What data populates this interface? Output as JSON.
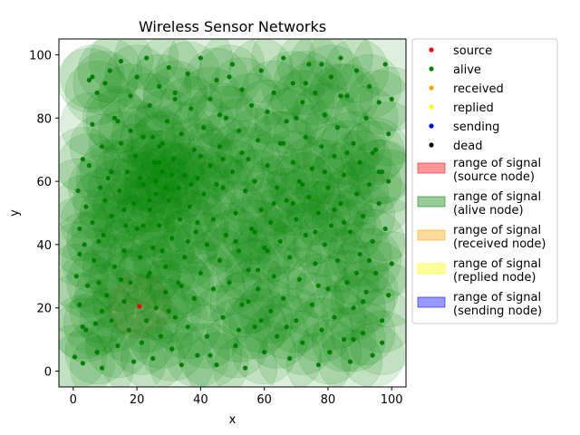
{
  "chart_data": {
    "type": "scatter",
    "title": "Wireless Sensor Networks",
    "xlabel": "x",
    "ylabel": "y",
    "xlim": [
      -4.5,
      104.5
    ],
    "ylim": [
      -5,
      105
    ],
    "xticks": [
      0,
      20,
      40,
      60,
      80,
      100
    ],
    "yticks": [
      0,
      20,
      40,
      60,
      80,
      100
    ],
    "grid": false,
    "legend_placement": "outside-right",
    "signal_radius": 10,
    "legend": [
      {
        "label": "source",
        "kind": "point",
        "color": "#ff0000"
      },
      {
        "label": "alive",
        "kind": "point",
        "color": "#008000"
      },
      {
        "label": "received",
        "kind": "point",
        "color": "#ffa500"
      },
      {
        "label": "replied",
        "kind": "point",
        "color": "#ffff00"
      },
      {
        "label": "sending",
        "kind": "point",
        "color": "#0000ff"
      },
      {
        "label": "dead",
        "kind": "point",
        "color": "#000000"
      },
      {
        "label": "range of signal\n(source node)",
        "kind": "patch",
        "color": "#ff0000"
      },
      {
        "label": "range of signal\n(alive node)",
        "kind": "patch",
        "color": "#008000"
      },
      {
        "label": "range of signal\n(received node)",
        "kind": "patch",
        "color": "#ffa500"
      },
      {
        "label": "range of signal\n(replied node)",
        "kind": "patch",
        "color": "#ffff00"
      },
      {
        "label": "range of signal\n(sending node)",
        "kind": "patch",
        "color": "#0000ff"
      }
    ],
    "series": [
      {
        "name": "source",
        "color": "#ff0000",
        "points": [
          [
            20.8,
            20.5
          ]
        ]
      },
      {
        "name": "alive",
        "color": "#008000",
        "points": [
          [
            0.5,
            4.5
          ],
          [
            1,
            30
          ],
          [
            1.5,
            57
          ],
          [
            2,
            21
          ],
          [
            2,
            37
          ],
          [
            3,
            2.5
          ],
          [
            3,
            67
          ],
          [
            3.5,
            40
          ],
          [
            4,
            13
          ],
          [
            4,
            52
          ],
          [
            4.5,
            27
          ],
          [
            5,
            65
          ],
          [
            5,
            92
          ],
          [
            6,
            47
          ],
          [
            6,
            78
          ],
          [
            6.5,
            35
          ],
          [
            7,
            15
          ],
          [
            7.5,
            6
          ],
          [
            7.5,
            88
          ],
          [
            8,
            28
          ],
          [
            8.5,
            58
          ],
          [
            9,
            1
          ],
          [
            9,
            71
          ],
          [
            9.5,
            43
          ],
          [
            10,
            91
          ],
          [
            10.5,
            24
          ],
          [
            11,
            61
          ],
          [
            11.5,
            95
          ],
          [
            12,
            16
          ],
          [
            12,
            49
          ],
          [
            13,
            33
          ],
          [
            13,
            80
          ],
          [
            14,
            8
          ],
          [
            14.5,
            57
          ],
          [
            15,
            72
          ],
          [
            15,
            98
          ],
          [
            16,
            22
          ],
          [
            16,
            38
          ],
          [
            16.5,
            46
          ],
          [
            17,
            63
          ],
          [
            17.5,
            13
          ],
          [
            18,
            28
          ],
          [
            18,
            87
          ],
          [
            19,
            3
          ],
          [
            19,
            53
          ],
          [
            19.5,
            68
          ],
          [
            20,
            45
          ],
          [
            20,
            93
          ],
          [
            21,
            36
          ],
          [
            21.5,
            9
          ],
          [
            22,
            74
          ],
          [
            22,
            59
          ],
          [
            23,
            16
          ],
          [
            23,
            99
          ],
          [
            23.5,
            30
          ],
          [
            24,
            51
          ],
          [
            24,
            84
          ],
          [
            25,
            4
          ],
          [
            25,
            39
          ],
          [
            25.5,
            66
          ],
          [
            26,
            20
          ],
          [
            26,
            56
          ],
          [
            27,
            90
          ],
          [
            27,
            46
          ],
          [
            27.5,
            11
          ],
          [
            28,
            72
          ],
          [
            28,
            63
          ],
          [
            29,
            33
          ],
          [
            29,
            25
          ],
          [
            29.5,
            79
          ],
          [
            30,
            54
          ],
          [
            30,
            96
          ],
          [
            31,
            42
          ],
          [
            31,
            7
          ],
          [
            31.5,
            67
          ],
          [
            32,
            17
          ],
          [
            32,
            88
          ],
          [
            33,
            58
          ],
          [
            33,
            28
          ],
          [
            33.5,
            48
          ],
          [
            34,
            75
          ],
          [
            34,
            2
          ],
          [
            35,
            36
          ],
          [
            35,
            62
          ],
          [
            36,
            94
          ],
          [
            36,
            14
          ],
          [
            36.5,
            52
          ],
          [
            37,
            83
          ],
          [
            38,
            23
          ],
          [
            38,
            70
          ],
          [
            38.5,
            44
          ],
          [
            39,
            5
          ],
          [
            39,
            61
          ],
          [
            40,
            31
          ],
          [
            40,
            99
          ],
          [
            41,
            56
          ],
          [
            41,
            77
          ],
          [
            42,
            11
          ],
          [
            42,
            40
          ],
          [
            43,
            86
          ],
          [
            43,
            65
          ],
          [
            44,
            26
          ],
          [
            44,
            48
          ],
          [
            45,
            2
          ],
          [
            45,
            92
          ],
          [
            46,
            71
          ],
          [
            46,
            35
          ],
          [
            47,
            58
          ],
          [
            47,
            17
          ],
          [
            48,
            80
          ],
          [
            48,
            43
          ],
          [
            49,
            28
          ],
          [
            50,
            63
          ],
          [
            50,
            97
          ],
          [
            51,
            8
          ],
          [
            51,
            50
          ],
          [
            52,
            76
          ],
          [
            52,
            38
          ],
          [
            53,
            21
          ],
          [
            53,
            89
          ],
          [
            54,
            57
          ],
          [
            54,
            1
          ],
          [
            55,
            67
          ],
          [
            55,
            32
          ],
          [
            56,
            45
          ],
          [
            56,
            84
          ],
          [
            57,
            14
          ],
          [
            57,
            60
          ],
          [
            58,
            73
          ],
          [
            58,
            26
          ],
          [
            59,
            51
          ],
          [
            59,
            95
          ],
          [
            60,
            6
          ],
          [
            60,
            39
          ],
          [
            61,
            82
          ],
          [
            61,
            65
          ],
          [
            62,
            19
          ],
          [
            62,
            47
          ],
          [
            63,
            88
          ],
          [
            63,
            30
          ],
          [
            64,
            58
          ],
          [
            64,
            11
          ],
          [
            65,
            72
          ],
          [
            65,
            41
          ],
          [
            66,
            99
          ],
          [
            66,
            23
          ],
          [
            67,
            54
          ],
          [
            67,
            79
          ],
          [
            68,
            4
          ],
          [
            68,
            36
          ],
          [
            69,
            66
          ],
          [
            69,
            91
          ],
          [
            70,
            16
          ],
          [
            70,
            48
          ],
          [
            71,
            60
          ],
          [
            71,
            29
          ],
          [
            72,
            85
          ],
          [
            72,
            9
          ],
          [
            73,
            43
          ],
          [
            73,
            74
          ],
          [
            74,
            55
          ],
          [
            74,
            97
          ],
          [
            75,
            21
          ],
          [
            75,
            64
          ],
          [
            76,
            34
          ],
          [
            76,
            88
          ],
          [
            77,
            2
          ],
          [
            77,
            50
          ],
          [
            78,
            71
          ],
          [
            78,
            13
          ],
          [
            79,
            40
          ],
          [
            79,
            81
          ],
          [
            80,
            26
          ],
          [
            80,
            58
          ],
          [
            80.5,
            6
          ],
          [
            81,
            93
          ],
          [
            81,
            46
          ],
          [
            82,
            68
          ],
          [
            82,
            17
          ],
          [
            83,
            35
          ],
          [
            83,
            77
          ],
          [
            84,
            53
          ],
          [
            84,
            99
          ],
          [
            85,
            10
          ],
          [
            85,
            62
          ],
          [
            86,
            28
          ],
          [
            86,
            87
          ],
          [
            87,
            44
          ],
          [
            87,
            3
          ],
          [
            88,
            72
          ],
          [
            88,
            20
          ],
          [
            89,
            56
          ],
          [
            89,
            95
          ],
          [
            90,
            37
          ],
          [
            90,
            66
          ],
          [
            91,
            12
          ],
          [
            91,
            49
          ],
          [
            92,
            80
          ],
          [
            92,
            25
          ],
          [
            93,
            59
          ],
          [
            93,
            90
          ],
          [
            94,
            5
          ],
          [
            94,
            41
          ],
          [
            95,
            70
          ],
          [
            95,
            31
          ],
          [
            96,
            85
          ],
          [
            96,
            53
          ],
          [
            97,
            16
          ],
          [
            97,
            63
          ],
          [
            98,
            97
          ],
          [
            98,
            45
          ],
          [
            99,
            24
          ],
          [
            99,
            75
          ],
          [
            100,
            86
          ],
          [
            100,
            34
          ],
          [
            96,
            63
          ],
          [
            89,
            31
          ],
          [
            84,
            87
          ],
          [
            76,
            44
          ],
          [
            69,
            53
          ],
          [
            58,
            32
          ],
          [
            52,
            13
          ],
          [
            47,
            67
          ],
          [
            36,
            41
          ],
          [
            27,
            71
          ],
          [
            21,
            61
          ],
          [
            14,
            79
          ],
          [
            8,
            41
          ],
          [
            3,
            14
          ],
          [
            10,
            54
          ],
          [
            18,
            76
          ],
          [
            24,
            31
          ],
          [
            30,
            19
          ],
          [
            37,
            59
          ],
          [
            43,
            5
          ],
          [
            49,
            93
          ],
          [
            55,
            22
          ],
          [
            61,
            38
          ],
          [
            67,
            14
          ],
          [
            73,
            91
          ],
          [
            79,
            63
          ],
          [
            85,
            47
          ],
          [
            91,
            22
          ],
          [
            97,
            9
          ],
          [
            99,
            60
          ],
          [
            6,
            93
          ],
          [
            12,
            63
          ],
          [
            16,
            51
          ],
          [
            22,
            46
          ],
          [
            28,
            38
          ],
          [
            34,
            27
          ],
          [
            40,
            68
          ],
          [
            46,
            81
          ],
          [
            53,
            69
          ],
          [
            57,
            44
          ],
          [
            63,
            53
          ],
          [
            70,
            80
          ],
          [
            77,
            27
          ],
          [
            82,
            51
          ],
          [
            88,
            10
          ],
          [
            94,
            69
          ],
          [
            2,
            45
          ],
          [
            9,
            19
          ],
          [
            15,
            29
          ],
          [
            25,
            74
          ],
          [
            32,
            86
          ],
          [
            39,
            47
          ],
          [
            45,
            59
          ],
          [
            51,
            41
          ],
          [
            59,
            16
          ],
          [
            66,
            72
          ],
          [
            72,
            59
          ],
          [
            78,
            97
          ],
          [
            86,
            69
          ],
          [
            93,
            35
          ],
          [
            27,
            66
          ],
          [
            29,
            58
          ],
          [
            31,
            62
          ],
          [
            26,
            60
          ],
          [
            24,
            54
          ]
        ]
      }
    ]
  }
}
